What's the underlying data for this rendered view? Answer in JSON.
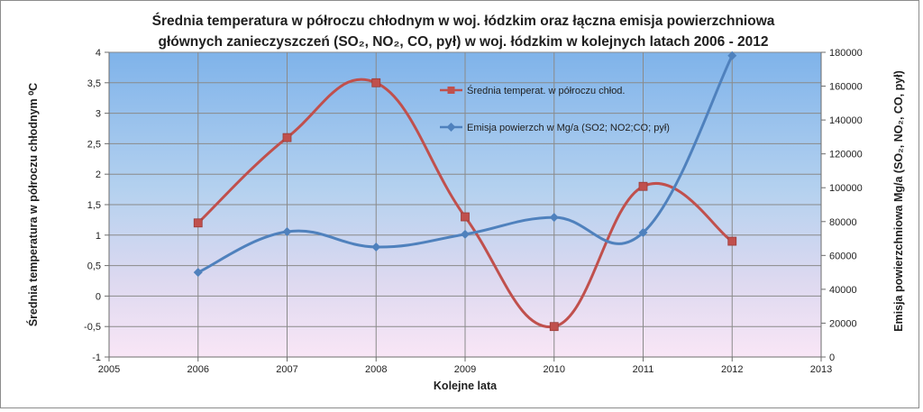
{
  "chart_data": {
    "type": "line",
    "title_line1": "Średnia temperatura w półroczu chłodnym  w woj. łódzkim oraz  łączna emisja powierzchniowa",
    "title_line2": "głównych zanieczyszczeń (SO₂, NO₂, CO, pył) w woj. łódzkim w kolejnych latach 2006 - 2012",
    "xlabel": "Kolejne lata",
    "ylabel_left": "Średnia temperatura w półroczu chłodnym ⁰C",
    "ylabel_right": "Emisja powierzchniowa Mg/a  (SO₂, NO₂, CO, pył)",
    "xlim": [
      2005,
      2013
    ],
    "x_ticks": [
      "2005",
      "2006",
      "2007",
      "2008",
      "2009",
      "2010",
      "2011",
      "2012",
      "2013"
    ],
    "ylim_left": [
      -1,
      4
    ],
    "y_left_ticks": [
      "-1",
      "-0,5",
      "0",
      "0,5",
      "1",
      "1,5",
      "2",
      "2,5",
      "3",
      "3,5",
      "4"
    ],
    "ylim_right": [
      0,
      180000
    ],
    "y_right_ticks": [
      "0",
      "20000",
      "40000",
      "60000",
      "80000",
      "100000",
      "120000",
      "140000",
      "160000",
      "180000"
    ],
    "grid": true,
    "legend_position": "inside-top-center",
    "series": [
      {
        "name": "Średnia temperat. w półroczu chłod.",
        "axis": "left",
        "color": "#c0504d",
        "marker": "square",
        "x": [
          2006,
          2007,
          2008,
          2009,
          2010,
          2011,
          2012
        ],
        "values": [
          1.2,
          2.6,
          3.5,
          1.3,
          -0.5,
          1.8,
          0.9
        ]
      },
      {
        "name": "Emisja powierzch w Mg/a (SO2; NO2;CO; pył)",
        "axis": "right",
        "color": "#4f81bd",
        "marker": "diamond",
        "x": [
          2006,
          2007,
          2008,
          2009,
          2010,
          2011,
          2012
        ],
        "values": [
          50000,
          74000,
          65000,
          72500,
          82500,
          73500,
          178000
        ]
      }
    ]
  }
}
